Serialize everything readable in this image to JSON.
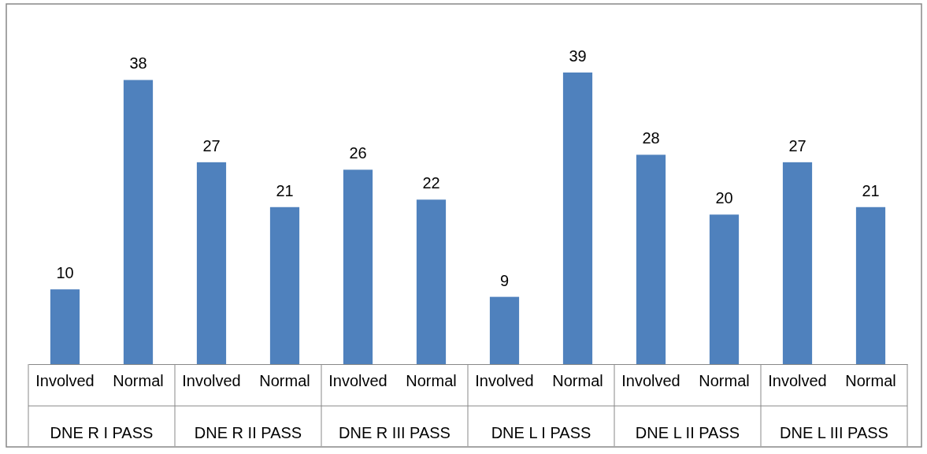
{
  "chart_data": {
    "type": "bar",
    "categories": [
      "Involved",
      "Normal",
      "Involved",
      "Normal",
      "Involved",
      "Normal",
      "Involved",
      "Normal",
      "Involved",
      "Normal",
      "Involved",
      "Normal"
    ],
    "values": [
      10,
      38,
      27,
      21,
      26,
      22,
      9,
      39,
      28,
      20,
      27,
      21
    ],
    "color": "#4f81bd",
    "data_labels": true,
    "annotations": [
      "DNE R I PASS",
      "DNE R II PASS",
      "DNE R III PASS",
      "DNE L I PASS",
      "DNE L II PASS",
      "DNE L III PASS"
    ]
  }
}
